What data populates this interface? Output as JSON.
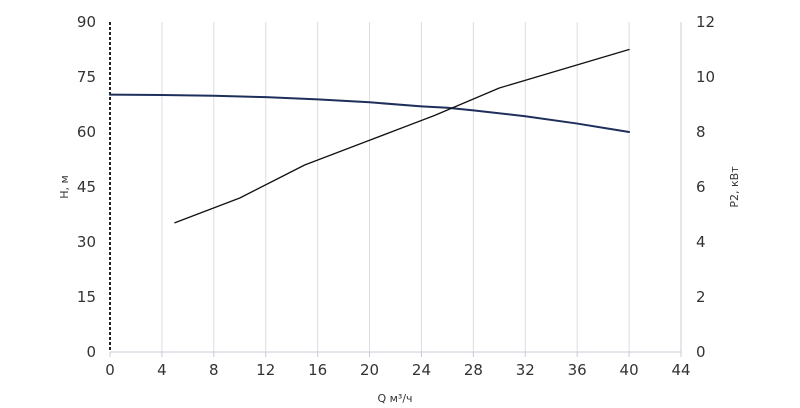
{
  "chart_data": {
    "type": "line",
    "xlabel": "Q м³/ч",
    "ylabel_left": "H, м",
    "ylabel_right": "P2, кВт",
    "x_ticks": [
      0,
      4,
      8,
      12,
      16,
      20,
      24,
      28,
      32,
      36,
      40,
      44
    ],
    "y_left_ticks": [
      0,
      15,
      30,
      45,
      60,
      75,
      90
    ],
    "y_right_ticks": [
      0,
      2,
      4,
      6,
      8,
      10,
      12
    ],
    "xlim": [
      0,
      44
    ],
    "ylim_left": [
      0,
      90
    ],
    "ylim_right": [
      0,
      12
    ],
    "grid": "vertical",
    "legend": "none",
    "series": [
      {
        "axis": "left",
        "color": "#1f2f5c",
        "x": [
          0,
          4,
          8,
          12,
          16,
          20,
          24,
          26,
          28,
          32,
          36,
          40
        ],
        "y": [
          70.2,
          70.1,
          69.9,
          69.5,
          68.9,
          68.1,
          67.0,
          66.6,
          65.9,
          64.3,
          62.3,
          60.0
        ]
      },
      {
        "axis": "right",
        "color": "#111111",
        "x": [
          5,
          10,
          15,
          20,
          25,
          30,
          35,
          40
        ],
        "y": [
          4.7,
          5.6,
          6.8,
          7.7,
          8.6,
          9.6,
          10.3,
          11.0
        ]
      }
    ]
  }
}
